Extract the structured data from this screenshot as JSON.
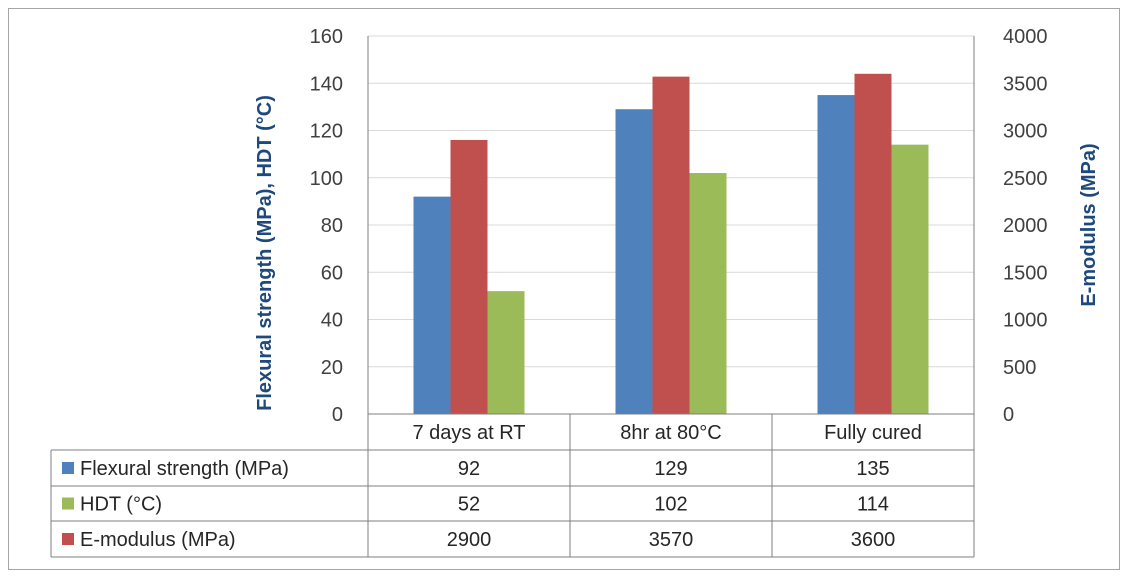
{
  "chart_data": {
    "type": "bar",
    "categories": [
      "7 days at RT",
      "8hr at 80°C",
      "Fully cured"
    ],
    "series": [
      {
        "name": "Flexural strength (MPa)",
        "values": [
          92,
          129,
          135
        ],
        "axis": "left",
        "color": "#4f81bd"
      },
      {
        "name": "E-modulus (MPa)",
        "values": [
          2900,
          3570,
          3600
        ],
        "axis": "right",
        "color": "#c0504d"
      },
      {
        "name": "HDT (°C)",
        "values": [
          52,
          102,
          114
        ],
        "axis": "left",
        "color": "#9bbb59"
      }
    ],
    "table_order": [
      "Flexural strength (MPa)",
      "HDT (°C)",
      "E-modulus (MPa)"
    ],
    "ylabel": "Flexural strength (MPa), HDT (°C)",
    "y2label": "E-modulus (MPa)",
    "ylim": [
      0,
      160
    ],
    "y2lim": [
      0,
      4000
    ],
    "yticks": [
      0,
      20,
      40,
      60,
      80,
      100,
      120,
      140,
      160
    ],
    "y2ticks": [
      0,
      500,
      1000,
      1500,
      2000,
      2500,
      3000,
      3500,
      4000
    ],
    "grid": true,
    "legend": "data-table"
  }
}
